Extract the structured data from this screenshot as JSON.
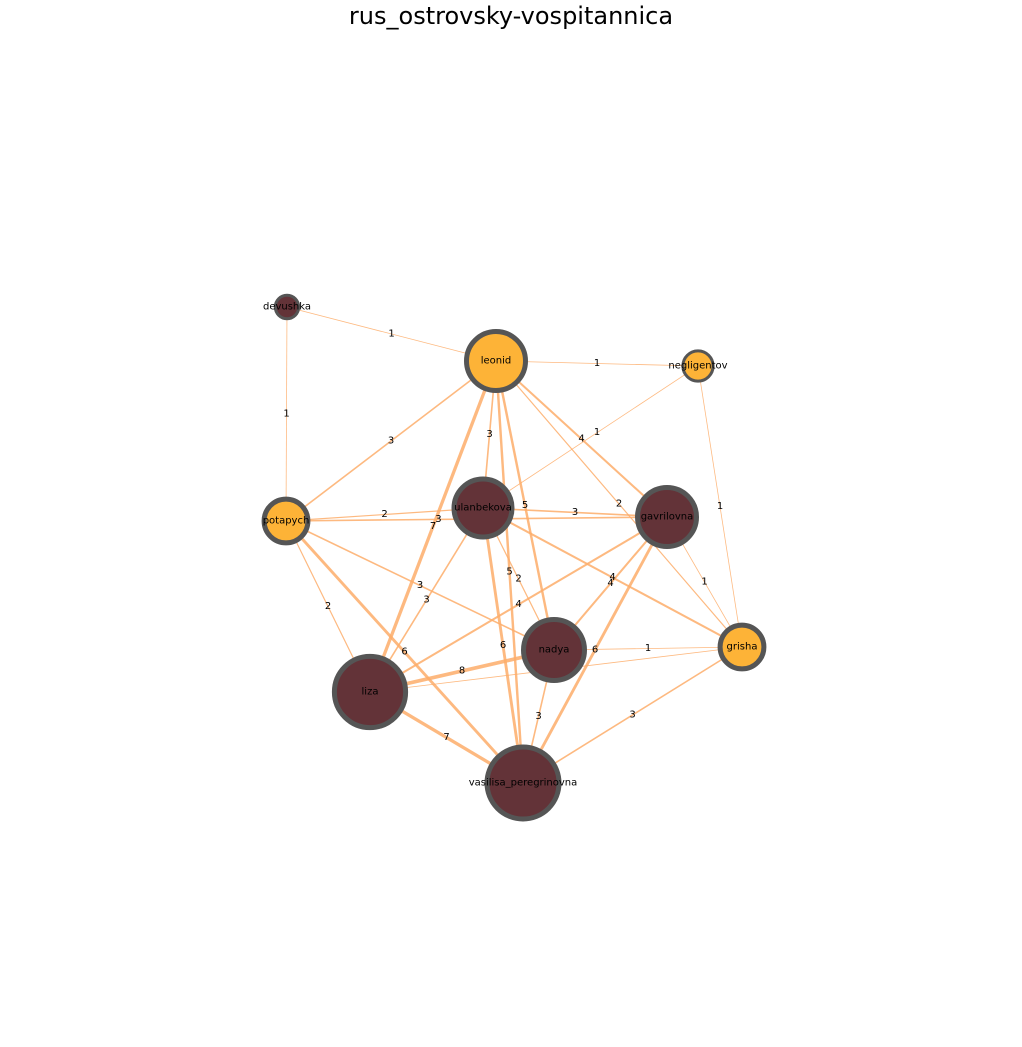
{
  "title": "rus_ostrovsky-vospitannica",
  "colors": {
    "node_orange": "#fdb337",
    "node_maroon": "#633338",
    "node_outline": "#555555",
    "edge": "#fdad6a"
  },
  "nodes": [
    {
      "id": "devushka",
      "label": "devushka",
      "color": "maroon",
      "weight": 1
    },
    {
      "id": "leonid",
      "label": "leonid",
      "color": "orange",
      "weight": 23
    },
    {
      "id": "negligentov",
      "label": "negligentov",
      "color": "orange",
      "weight": 3
    },
    {
      "id": "potapych",
      "label": "potapych",
      "color": "orange",
      "weight": 10
    },
    {
      "id": "ulanbekova",
      "label": "ulanbekova",
      "color": "maroon",
      "weight": 22
    },
    {
      "id": "gavrilovna",
      "label": "gavrilovna",
      "color": "maroon",
      "weight": 23
    },
    {
      "id": "grisha",
      "label": "grisha",
      "color": "orange",
      "weight": 10
    },
    {
      "id": "nadya",
      "label": "nadya",
      "color": "maroon",
      "weight": 25
    },
    {
      "id": "liza",
      "label": "liza",
      "color": "maroon",
      "weight": 37
    },
    {
      "id": "vasilisa_peregrinovna",
      "label": "vasilisa_peregrinovna",
      "color": "maroon",
      "weight": 38
    }
  ],
  "edges": [
    {
      "source": "devushka",
      "target": "leonid",
      "weight": 1
    },
    {
      "source": "devushka",
      "target": "potapych",
      "weight": 1
    },
    {
      "source": "leonid",
      "target": "negligentov",
      "weight": 1
    },
    {
      "source": "leonid",
      "target": "potapych",
      "weight": 3
    },
    {
      "source": "leonid",
      "target": "ulanbekova",
      "weight": 3
    },
    {
      "source": "leonid",
      "target": "gavrilovna",
      "weight": 4
    },
    {
      "source": "leonid",
      "target": "grisha",
      "weight": 2
    },
    {
      "source": "leonid",
      "target": "liza",
      "weight": 7
    },
    {
      "source": "leonid",
      "target": "nadya",
      "weight": 5
    },
    {
      "source": "leonid",
      "target": "vasilisa_peregrinovna",
      "weight": 5
    },
    {
      "source": "negligentov",
      "target": "ulanbekova",
      "weight": 1
    },
    {
      "source": "negligentov",
      "target": "grisha",
      "weight": 1
    },
    {
      "source": "potapych",
      "target": "ulanbekova",
      "weight": 2
    },
    {
      "source": "potapych",
      "target": "gavrilovna",
      "weight": 3
    },
    {
      "source": "potapych",
      "target": "nadya",
      "weight": 3
    },
    {
      "source": "potapych",
      "target": "liza",
      "weight": 2
    },
    {
      "source": "potapych",
      "target": "vasilisa_peregrinovna",
      "weight": 6
    },
    {
      "source": "ulanbekova",
      "target": "gavrilovna",
      "weight": 3
    },
    {
      "source": "ulanbekova",
      "target": "grisha",
      "weight": 4
    },
    {
      "source": "ulanbekova",
      "target": "nadya",
      "weight": 2
    },
    {
      "source": "ulanbekova",
      "target": "liza",
      "weight": 3
    },
    {
      "source": "ulanbekova",
      "target": "vasilisa_peregrinovna",
      "weight": 6
    },
    {
      "source": "gavrilovna",
      "target": "grisha",
      "weight": 1
    },
    {
      "source": "gavrilovna",
      "target": "nadya",
      "weight": 4
    },
    {
      "source": "gavrilovna",
      "target": "liza",
      "weight": 4
    },
    {
      "source": "gavrilovna",
      "target": "vasilisa_peregrinovna",
      "weight": 6
    },
    {
      "source": "grisha",
      "target": "nadya",
      "weight": 1
    },
    {
      "source": "grisha",
      "target": "liza",
      "weight": 1
    },
    {
      "source": "grisha",
      "target": "vasilisa_peregrinovna",
      "weight": 3
    },
    {
      "source": "nadya",
      "target": "liza",
      "weight": 8
    },
    {
      "source": "nadya",
      "target": "vasilisa_peregrinovna",
      "weight": 3
    },
    {
      "source": "liza",
      "target": "vasilisa_peregrinovna",
      "weight": 7
    }
  ]
}
